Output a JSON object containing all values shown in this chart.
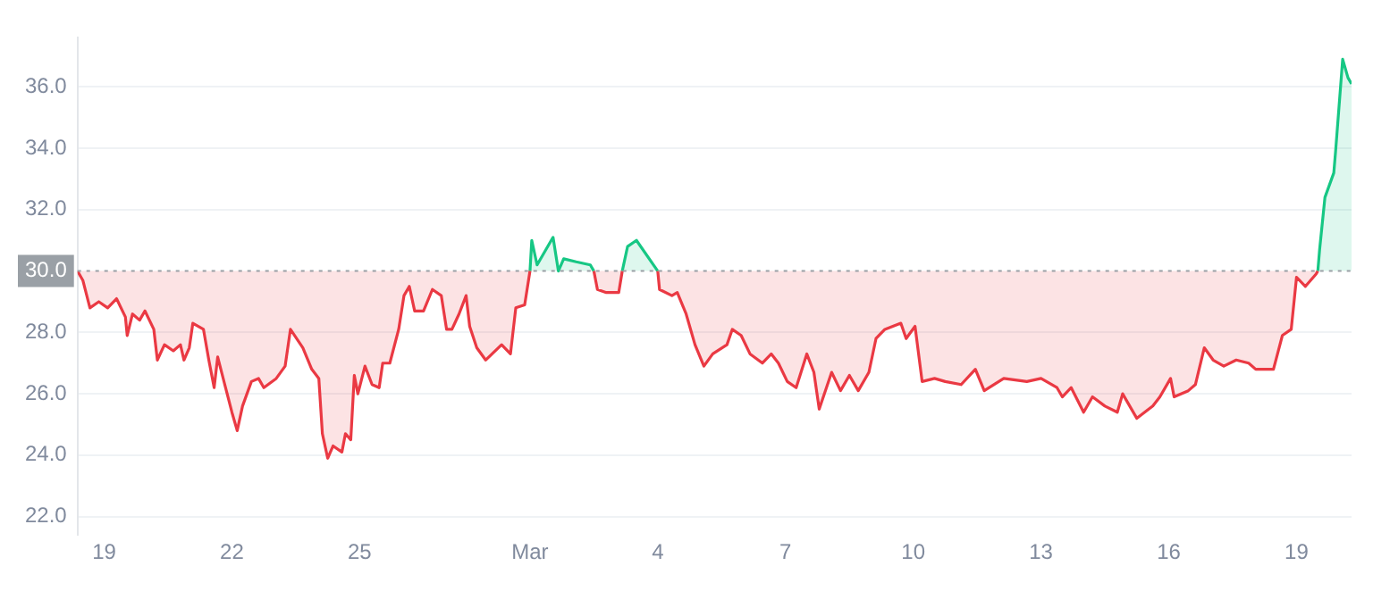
{
  "chart_data": {
    "type": "area",
    "x": [
      "--02-18T09:00",
      "--02-18T12:00",
      "--02-18T16:00",
      "--02-18T21:00",
      "--02-19T02:00",
      "--02-19T07:00",
      "--02-19T12:00",
      "--02-19T13:00",
      "--02-19T16:00",
      "--02-19T20:00",
      "--02-19T23:00",
      "--02-20T04:00",
      "--02-20T06:00",
      "--02-20T10:00",
      "--02-20T15:00",
      "--02-20T19:00",
      "--02-20T21:00",
      "--02-21T00:00",
      "--02-21T02:00",
      "--02-21T08:00",
      "--02-21T11:00",
      "--02-21T14:00",
      "--02-21T16:00",
      "--02-21T20:00",
      "--02-22T00:00",
      "--02-22T03:00",
      "--02-22T06:00",
      "--02-22T11:00",
      "--02-22T15:00",
      "--02-22T18:00",
      "--02-23T01:00",
      "--02-23T06:00",
      "--02-23T09:00",
      "--02-23T16:00",
      "--02-23T21:00",
      "--02-24T01:00",
      "--02-24T03:00",
      "--02-24T06:00",
      "--02-24T09:00",
      "--02-24T14:00",
      "--02-24T16:00",
      "--02-24T19:00",
      "--02-24T21:00",
      "--02-24T23:00",
      "--02-25T03:00",
      "--02-25T07:00",
      "--02-25T11:00",
      "--02-25T13:00",
      "--02-25T17:00",
      "--02-25T22:00",
      "--02-26T01:00",
      "--02-26T04:00",
      "--02-26T07:00",
      "--02-26T12:00",
      "--02-26T17:00",
      "--02-26T22:00",
      "--02-27T01:00",
      "--02-27T04:00",
      "--02-27T08:00",
      "--02-27T12:00",
      "--02-27T14:00",
      "--02-27T18:00",
      "--02-27T23:00",
      "--02-28T08:00",
      "--02-28T13:00",
      "--02-28T16:00",
      "--02-28T21:00",
      "--03-01T00:00",
      "--03-01T01:00",
      "--03-01T04:00",
      "--03-01T13:00",
      "--03-01T16:00",
      "--03-01T19:00",
      "--03-02T02:00",
      "--03-02T10:00",
      "--03-02T12:00",
      "--03-02T14:00",
      "--03-02T19:00",
      "--03-03T02:00",
      "--03-03T04:00",
      "--03-03T07:00",
      "--03-03T12:00",
      "--03-04T00:00",
      "--03-04T01:00",
      "--03-04T08:00",
      "--03-04T11:00",
      "--03-04T16:00",
      "--03-04T21:00",
      "--03-05T02:00",
      "--03-05T07:00",
      "--03-05T15:00",
      "--03-05T18:00",
      "--03-05T23:00",
      "--03-06T04:00",
      "--03-06T11:00",
      "--03-06T16:00",
      "--03-06T20:00",
      "--03-07T01:00",
      "--03-07T06:00",
      "--03-07T12:00",
      "--03-07T16:00",
      "--03-07T19:00",
      "--03-08T02:00",
      "--03-08T07:00",
      "--03-08T12:00",
      "--03-08T17:00",
      "--03-08T23:00",
      "--03-09T03:00",
      "--03-09T08:00",
      "--03-09T17:00",
      "--03-09T20:00",
      "--03-10T01:00",
      "--03-10T05:00",
      "--03-10T12:00",
      "--03-10T18:00",
      "--03-11T03:00",
      "--03-11T11:00",
      "--03-11T16:00",
      "--03-12T03:00",
      "--03-12T16:00",
      "--03-13T00:00",
      "--03-13T09:00",
      "--03-13T12:00",
      "--03-13T17:00",
      "--03-14T00:00",
      "--03-14T05:00",
      "--03-14T12:00",
      "--03-14T19:00",
      "--03-14T22:00",
      "--03-15T06:00",
      "--03-15T15:00",
      "--03-15T19:00",
      "--03-16T01:00",
      "--03-16T03:00",
      "--03-16T11:00",
      "--03-16T15:00",
      "--03-16T20:00",
      "--03-17T01:00",
      "--03-17T07:00",
      "--03-17T14:00",
      "--03-17T21:00",
      "--03-18T01:00",
      "--03-18T11:00",
      "--03-18T16:00",
      "--03-18T21:00",
      "--03-19T00:00",
      "--03-19T05:00",
      "--03-19T11:00",
      "--03-19T12:00",
      "--03-19T13:00",
      "--03-19T16:00",
      "--03-19T21:00",
      "--03-19T22:00",
      "--03-20T02:00",
      "--03-20T05:00",
      "--03-20T07:00"
    ],
    "series": [
      {
        "color": "#ea3943",
        "values": [
          30.0,
          29.7,
          28.8,
          29.0,
          28.8,
          29.1,
          28.5,
          27.9,
          28.6,
          28.4,
          28.7,
          28.1,
          27.1,
          27.6,
          27.4,
          27.6,
          27.1,
          27.5,
          28.3,
          28.1,
          27.1,
          26.2,
          27.2,
          26.3,
          25.4,
          24.8,
          25.6,
          26.4,
          26.5,
          26.2,
          26.5,
          26.9,
          28.1,
          27.5,
          26.8,
          26.5,
          24.7,
          23.9,
          24.3,
          24.1,
          24.7,
          24.5,
          26.6,
          26.0,
          26.9,
          26.3,
          26.2,
          27.0,
          27.0,
          28.1,
          29.2,
          29.5,
          28.7,
          28.7,
          29.4,
          29.2,
          28.1,
          28.1,
          28.6,
          29.2,
          28.2,
          27.5,
          27.1,
          27.6,
          27.3,
          28.8,
          28.9,
          30.0,
          null,
          null,
          null,
          null,
          null,
          null,
          null,
          30.0,
          29.4,
          29.3,
          29.3,
          30.0,
          null,
          null,
          30.0,
          29.4,
          29.2,
          29.3,
          28.6,
          27.6,
          26.9,
          27.3,
          27.6,
          28.1,
          27.9,
          27.3,
          27.0,
          27.3,
          27.0,
          26.4,
          26.2,
          27.3,
          26.7,
          25.5,
          26.7,
          26.1,
          26.6,
          26.1,
          26.7,
          27.8,
          28.1,
          28.3,
          27.8,
          28.2,
          26.4,
          26.5,
          26.4,
          26.3,
          26.8,
          26.1,
          26.5,
          26.4,
          26.5,
          26.2,
          25.9,
          26.2,
          25.4,
          25.9,
          25.6,
          25.4,
          26.0,
          25.2,
          25.6,
          25.9,
          26.5,
          25.9,
          26.1,
          26.3,
          27.5,
          27.1,
          26.9,
          27.1,
          27.0,
          26.8,
          26.8,
          27.9,
          28.1,
          29.8,
          29.5,
          29.9,
          30.0,
          null,
          null,
          null,
          null,
          null,
          null,
          null
        ]
      },
      {
        "color": "#16c784",
        "values": [
          null,
          null,
          null,
          null,
          null,
          null,
          null,
          null,
          null,
          null,
          null,
          null,
          null,
          null,
          null,
          null,
          null,
          null,
          null,
          null,
          null,
          null,
          null,
          null,
          null,
          null,
          null,
          null,
          null,
          null,
          null,
          null,
          null,
          null,
          null,
          null,
          null,
          null,
          null,
          null,
          null,
          null,
          null,
          null,
          null,
          null,
          null,
          null,
          null,
          null,
          null,
          null,
          null,
          null,
          null,
          null,
          null,
          null,
          null,
          null,
          null,
          null,
          null,
          null,
          null,
          null,
          null,
          30.0,
          31.0,
          30.2,
          31.1,
          30.0,
          30.4,
          30.3,
          30.2,
          30.0,
          null,
          null,
          null,
          30.0,
          30.8,
          31.0,
          30.0,
          null,
          null,
          null,
          null,
          null,
          null,
          null,
          null,
          null,
          null,
          null,
          null,
          null,
          null,
          null,
          null,
          null,
          null,
          null,
          null,
          null,
          null,
          null,
          null,
          null,
          null,
          null,
          null,
          null,
          null,
          null,
          null,
          null,
          null,
          null,
          null,
          null,
          null,
          null,
          null,
          null,
          null,
          null,
          null,
          null,
          null,
          null,
          null,
          null,
          null,
          null,
          null,
          null,
          null,
          null,
          null,
          null,
          null,
          null,
          null,
          null,
          null,
          null,
          null,
          null,
          30.0,
          30.7,
          32.4,
          33.2,
          33.9,
          36.9,
          36.3,
          36.1
        ]
      }
    ],
    "xlim": [
      "--02-18T09:00",
      "--03-20T07:00"
    ],
    "xticks": [
      {
        "value": "--02-19",
        "label": "19"
      },
      {
        "value": "--02-22",
        "label": "22"
      },
      {
        "value": "--02-25",
        "label": "25"
      },
      {
        "value": "--03-01",
        "label": "Mar"
      },
      {
        "value": "--03-04",
        "label": "4"
      },
      {
        "value": "--03-07",
        "label": "7"
      },
      {
        "value": "--03-10",
        "label": "10"
      },
      {
        "value": "--03-13",
        "label": "13"
      },
      {
        "value": "--03-16",
        "label": "16"
      },
      {
        "value": "--03-19",
        "label": "19"
      }
    ],
    "ylim": [
      21.4,
      37.6
    ],
    "yticks": [
      {
        "value": 22,
        "label": "22.0"
      },
      {
        "value": 24,
        "label": "24.0"
      },
      {
        "value": 26,
        "label": "26.0"
      },
      {
        "value": 28,
        "label": "28.0"
      },
      {
        "value": 32,
        "label": "32.0"
      },
      {
        "value": 34,
        "label": "34.0"
      },
      {
        "value": 36,
        "label": "36.0"
      }
    ],
    "ref_lines": [
      {
        "axis": "y",
        "value": 30,
        "label": "30.0",
        "color": "#9aa0a6",
        "line_style": "dotted"
      }
    ],
    "grid": "y",
    "marker": "none",
    "line_style": "solid"
  }
}
